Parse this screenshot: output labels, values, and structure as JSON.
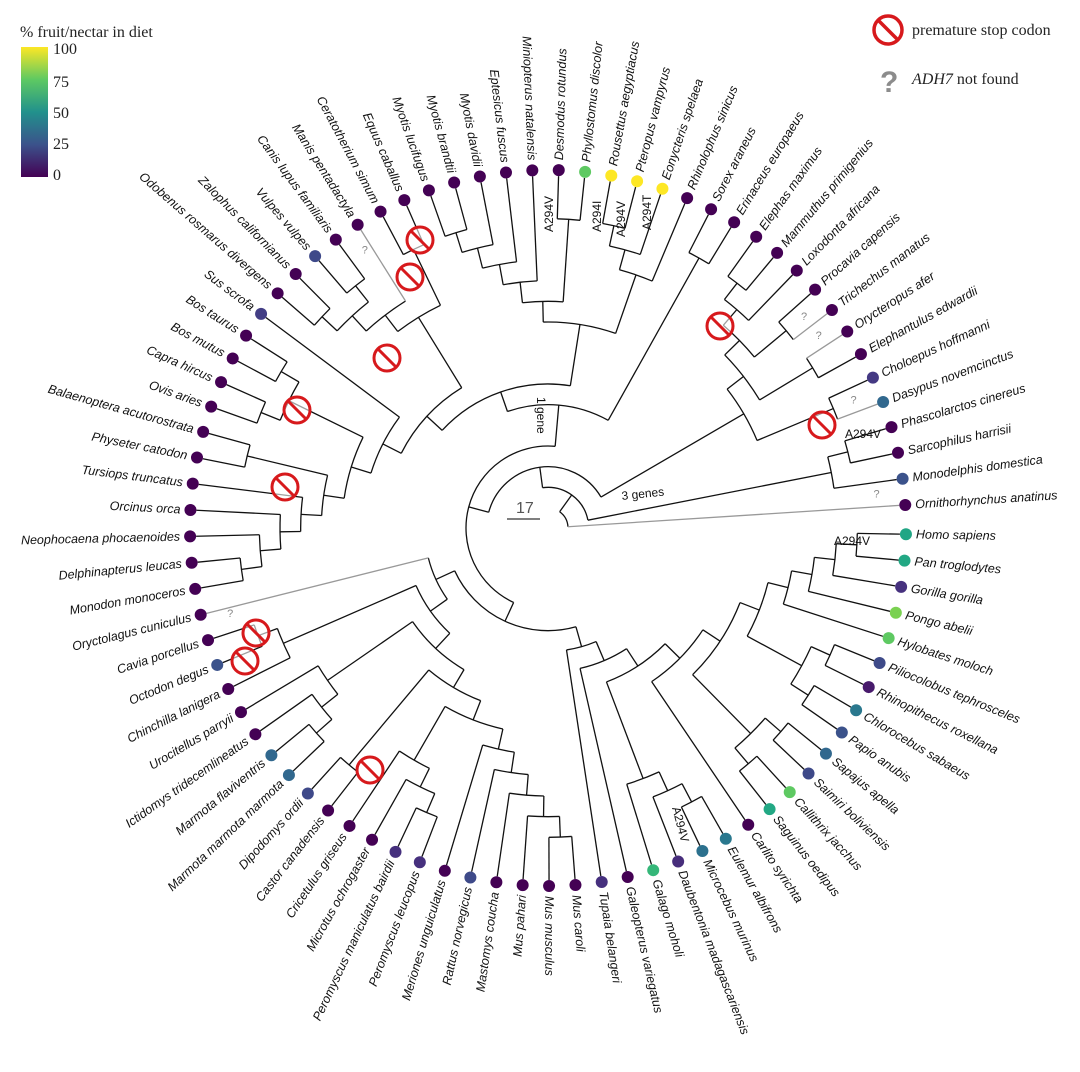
{
  "legend": {
    "title": "% fruit/nectar in diet",
    "ticks": [
      "100",
      "75",
      "50",
      "25",
      "0"
    ],
    "colors": [
      "#fde725",
      "#5ec962",
      "#21918c",
      "#3b528b",
      "#440154"
    ],
    "stop_label": "premature stop codon",
    "notfound_gene": "ADH7",
    "notfound_rest": " not found",
    "notfound_symbol": "?"
  },
  "annotations": {
    "one_gene": "1 gene",
    "three_genes": "3 genes",
    "scale": "17",
    "question": "?"
  },
  "mutations": [
    "A294V",
    "A294I",
    "A294V",
    "A294T",
    "A294V",
    "A294V",
    "A294V"
  ],
  "taxa": [
    {
      "name": "Homo sapiens",
      "color": "#21a685"
    },
    {
      "name": "Pan troglodytes",
      "color": "#22a884"
    },
    {
      "name": "Gorilla gorilla",
      "color": "#46317e"
    },
    {
      "name": "Pongo abelii",
      "color": "#7ad151"
    },
    {
      "name": "Hylobates moloch",
      "color": "#5ec962"
    },
    {
      "name": "Piliocolobus tephrosceles",
      "color": "#3e4a89"
    },
    {
      "name": "Rhinopithecus roxellana",
      "color": "#481a6c"
    },
    {
      "name": "Chlorocebus sabaeus",
      "color": "#2a788e"
    },
    {
      "name": "Papio anubis",
      "color": "#3b528b"
    },
    {
      "name": "Sapajus apella",
      "color": "#31688e"
    },
    {
      "name": "Saimiri boliviensis",
      "color": "#3e4989"
    },
    {
      "name": "Callithrix jacchus",
      "color": "#5ec962"
    },
    {
      "name": "Saguinus oedipus",
      "color": "#22a884"
    },
    {
      "name": "Carlito syrichta",
      "color": "#440154"
    },
    {
      "name": "Eulemur albifrons",
      "color": "#2a788e"
    },
    {
      "name": "Microcebus murinus",
      "color": "#2c718e"
    },
    {
      "name": "Daubentonia madagascariensis",
      "color": "#472d7b"
    },
    {
      "name": "Galago moholi",
      "color": "#35b779"
    },
    {
      "name": "Galeopterus variegatus",
      "color": "#440154"
    },
    {
      "name": "Tupaia belangeri",
      "color": "#46307e"
    },
    {
      "name": "Mus caroli",
      "color": "#440154"
    },
    {
      "name": "Mus musculus",
      "color": "#440154"
    },
    {
      "name": "Mus pahari",
      "color": "#440154"
    },
    {
      "name": "Mastomys coucha",
      "color": "#440154"
    },
    {
      "name": "Rattus norvegicus",
      "color": "#3e4a89"
    },
    {
      "name": "Meriones unguiculatus",
      "color": "#440154"
    },
    {
      "name": "Peromyscus leucopus",
      "color": "#46307e"
    },
    {
      "name": "Peromyscus maniculatus bairdii",
      "color": "#46307e"
    },
    {
      "name": "Microtus ochrogaster",
      "color": "#440154"
    },
    {
      "name": "Cricetulus griseus",
      "color": "#440154"
    },
    {
      "name": "Castor canadensis",
      "color": "#440154"
    },
    {
      "name": "Dipodomys ordii",
      "color": "#3e4989"
    },
    {
      "name": "Marmota marmota marmota",
      "color": "#31688e"
    },
    {
      "name": "Marmota flaviventris",
      "color": "#31688e"
    },
    {
      "name": "Ictidomys tridecemlineatus",
      "color": "#440154"
    },
    {
      "name": "Urocitellus parryii",
      "color": "#440154"
    },
    {
      "name": "Chinchilla lanigera",
      "color": "#440154"
    },
    {
      "name": "Octodon degus",
      "color": "#3b528b"
    },
    {
      "name": "Cavia porcellus",
      "color": "#440154"
    },
    {
      "name": "Oryctolagus cuniculus",
      "color": "#440154",
      "missing": true
    },
    {
      "name": "Monodon monoceros",
      "color": "#440154"
    },
    {
      "name": "Delphinapterus leucas",
      "color": "#440154"
    },
    {
      "name": "Neophocaena phocaenoides",
      "color": "#440154"
    },
    {
      "name": "Orcinus orca",
      "color": "#440154"
    },
    {
      "name": "Tursiops truncatus",
      "color": "#440154"
    },
    {
      "name": "Physeter catodon",
      "color": "#440154"
    },
    {
      "name": "Balaenoptera acutorostrata",
      "color": "#440154"
    },
    {
      "name": "Ovis aries",
      "color": "#440154"
    },
    {
      "name": "Capra hircus",
      "color": "#440154"
    },
    {
      "name": "Bos mutus",
      "color": "#440154"
    },
    {
      "name": "Bos taurus",
      "color": "#440154"
    },
    {
      "name": "Sus scrofa",
      "color": "#433e85"
    },
    {
      "name": "Odobenus rosmarus divergens",
      "color": "#440154"
    },
    {
      "name": "Zalophus californianus",
      "color": "#440154"
    },
    {
      "name": "Vulpes vulpes",
      "color": "#3e4989"
    },
    {
      "name": "Canis lupus familiaris",
      "color": "#440154"
    },
    {
      "name": "Manis pentadactyla",
      "color": "#440154",
      "missing": true
    },
    {
      "name": "Ceratotherium simum",
      "color": "#440154"
    },
    {
      "name": "Equus caballus",
      "color": "#440154"
    },
    {
      "name": "Myotis lucifugus",
      "color": "#440154"
    },
    {
      "name": "Myotis brandtii",
      "color": "#440154"
    },
    {
      "name": "Myotis davidii",
      "color": "#440154"
    },
    {
      "name": "Eptesicus fuscus",
      "color": "#440154"
    },
    {
      "name": "Miniopterus natalensis",
      "color": "#440154"
    },
    {
      "name": "Desmodus rotundus",
      "color": "#440154"
    },
    {
      "name": "Phyllostomus discolor",
      "color": "#5ec962"
    },
    {
      "name": "Rousettus aegyptiacus",
      "color": "#fde725"
    },
    {
      "name": "Pteropus vampyrus",
      "color": "#fde725"
    },
    {
      "name": "Eonycteris spelaea",
      "color": "#fde725"
    },
    {
      "name": "Rhinolophus sinicus",
      "color": "#440154"
    },
    {
      "name": "Sorex araneus",
      "color": "#440154"
    },
    {
      "name": "Erinaceus europaeus",
      "color": "#440154"
    },
    {
      "name": "Elephas maximus",
      "color": "#440154"
    },
    {
      "name": "Mammuthus primigenius",
      "color": "#440154"
    },
    {
      "name": "Loxodonta africana",
      "color": "#440154"
    },
    {
      "name": "Procavia capensis",
      "color": "#440154"
    },
    {
      "name": "Trichechus manatus",
      "color": "#440154",
      "missing": true
    },
    {
      "name": "Orycteropus afer",
      "color": "#440154",
      "missing": true
    },
    {
      "name": "Elephantulus edwardii",
      "color": "#440154"
    },
    {
      "name": "Choloepus hoffmanni",
      "color": "#443983"
    },
    {
      "name": "Dasypus novemcinctus",
      "color": "#31688e",
      "missing": true
    },
    {
      "name": "Phascolarctos cinereus",
      "color": "#440154"
    },
    {
      "name": "Sarcophilus harrisii",
      "color": "#440154"
    },
    {
      "name": "Monodelphis domestica",
      "color": "#3b528b"
    },
    {
      "name": "Ornithorhynchus anatinus",
      "color": "#440154",
      "missing": true
    }
  ],
  "tree": [
    [
      [
        [
          [
            [
              [
                [
                  [
                    [
                      [
                        [
                          [
                            [
                              [
                                0,
                                1
                              ],
                              2
                            ],
                            3
                          ],
                          4
                        ],
                        [
                          [
                            5,
                            6
                          ],
                          [
                            7,
                            8
                          ]
                        ]
                      ],
                      [
                        [
                          9,
                          10
                        ],
                        [
                          11,
                          12
                        ]
                      ]
                    ],
                    13
                  ],
                  [
                    [
                      [
                        14,
                        15
                      ],
                      16
                    ],
                    17
                  ]
                ],
                18
              ],
              19
            ],
            [
              [
                [
                  [
                    [
                      [
                        [
                          [
                            [
                              [
                                20,
                                21
                              ],
                              22
                            ],
                            23
                          ],
                          24
                        ],
                        25
                      ],
                      [
                        [
                          [
                            26,
                            27
                          ],
                          28
                        ],
                        29
                      ]
                    ],
                    [
                      30,
                      31
                    ]
                  ],
                  [
                    [
                      [
                        32,
                        33
                      ],
                      34
                    ],
                    35
                  ]
                ],
                [
                  36,
                  [
                    37,
                    38
                  ]
                ]
              ],
              39
            ]
          ],
          [
            [
              [
                [
                  [
                    [
                      [
                        [
                          [
                            [
                              40,
                              41
                            ],
                            42
                          ],
                          43
                        ],
                        44
                      ],
                      [
                        45,
                        46
                      ]
                    ],
                    [
                      [
                        47,
                        48
                      ],
                      [
                        49,
                        50
                      ]
                    ]
                  ],
                  51
                ],
                [
                  [
                    [
                      [
                        52,
                        53
                      ],
                      [
                        54,
                        55
                      ]
                    ],
                    56
                  ],
                  [
                    57,
                    58
                  ]
                ]
              ],
              [
                [
                  [
                    [
                      [
                        [
                          59,
                          60
                        ],
                        61
                      ],
                      62
                    ],
                    63
                  ],
                  [
                    64,
                    65
                  ]
                ],
                [
                  [
                    [
                      66,
                      67
                    ],
                    68
                  ],
                  69
                ]
              ]
            ],
            [
              70,
              71
            ]
          ]
        ],
        [
          [
            [
              [
                [
                  72,
                  73
                ],
                74
              ],
              [
                75,
                76
              ]
            ],
            [
              77,
              78
            ]
          ],
          [
            79,
            80
          ]
        ]
      ],
      [
        [
          81,
          82
        ],
        83
      ]
    ],
    84
  ]
}
